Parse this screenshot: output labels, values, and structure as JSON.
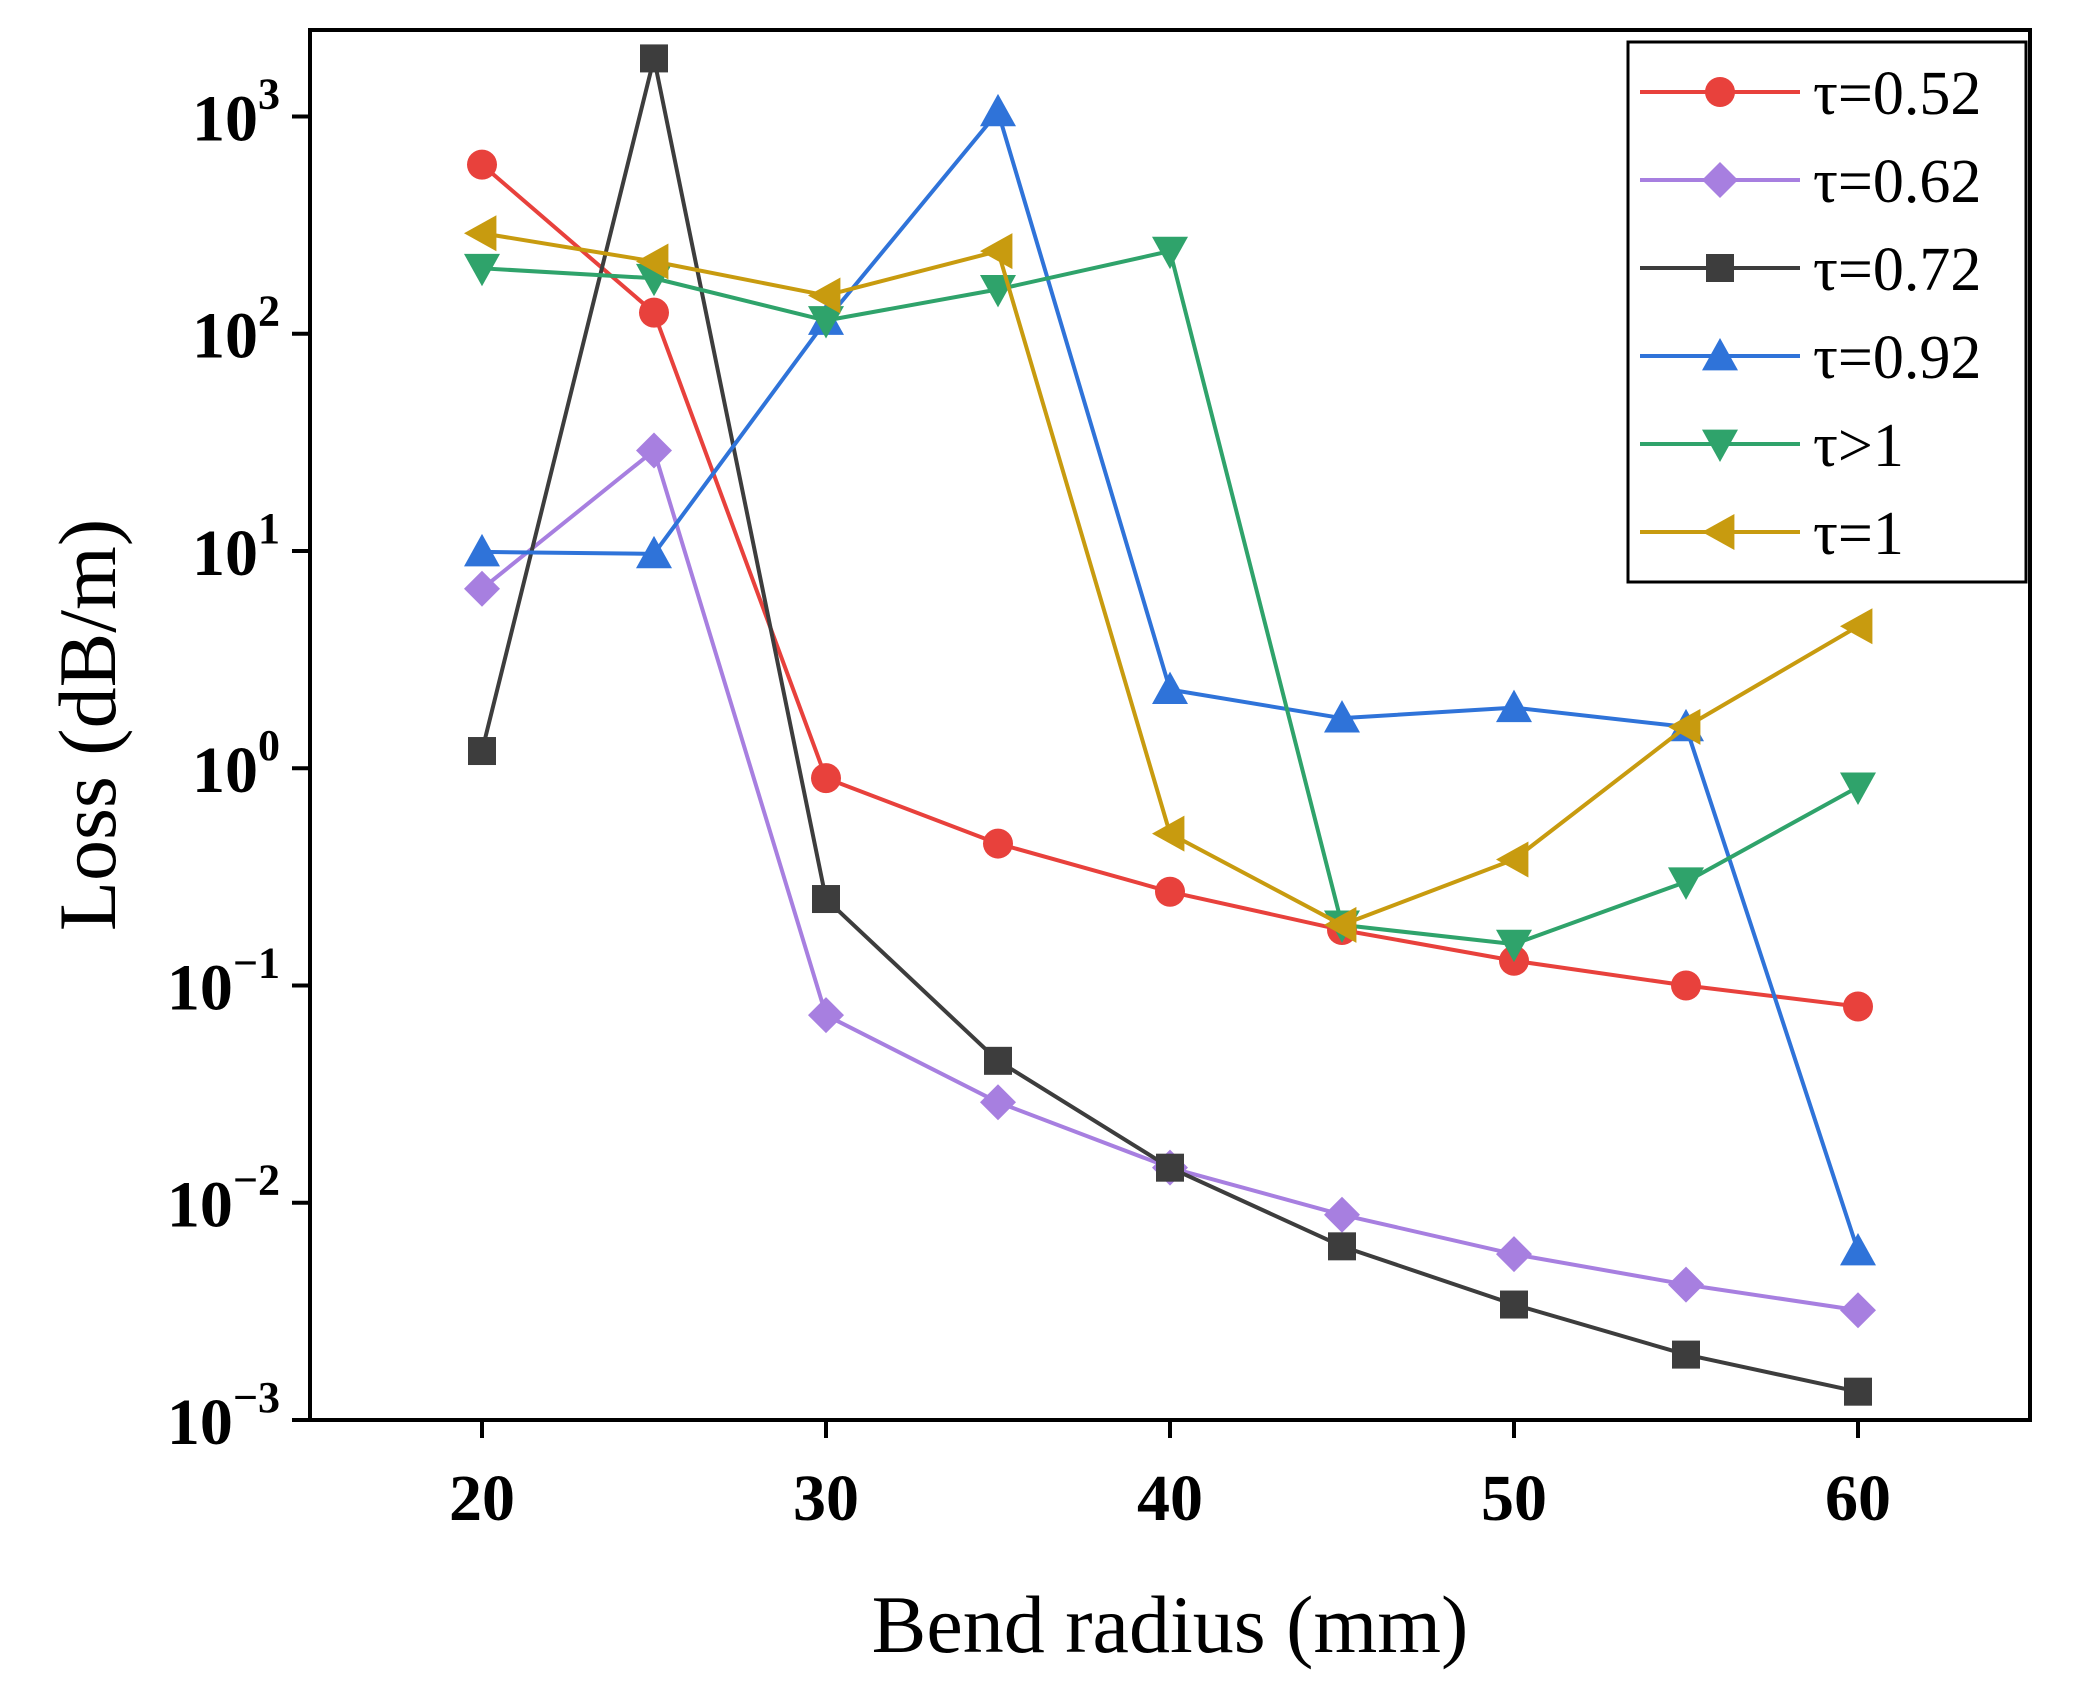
{
  "chart_data": {
    "type": "line",
    "title": "",
    "xlabel": "Bend radius (mm)",
    "ylabel": "Loss (dB/m)",
    "xlim": [
      15,
      65
    ],
    "ylim": [
      0.001,
      2500
    ],
    "yscale": "log",
    "x_ticks": [
      20,
      30,
      40,
      50,
      60
    ],
    "x_tick_labels": [
      "20",
      "30",
      "40",
      "50",
      "60"
    ],
    "y_ticks": [
      {
        "value": 0.001,
        "base": "10",
        "exp": "−3"
      },
      {
        "value": 0.01,
        "base": "10",
        "exp": "−2"
      },
      {
        "value": 0.1,
        "base": "10",
        "exp": "−1"
      },
      {
        "value": 1,
        "base": "10",
        "exp": "0"
      },
      {
        "value": 10,
        "base": "10",
        "exp": "1"
      },
      {
        "value": 100,
        "base": "10",
        "exp": "2"
      },
      {
        "value": 1000,
        "base": "10",
        "exp": "3"
      }
    ],
    "grid": false,
    "legend_position": "top-right",
    "x": [
      20,
      25,
      30,
      35,
      40,
      45,
      50,
      55,
      60
    ],
    "series": [
      {
        "name": "τ=0.52",
        "color": "#e8413c",
        "marker": "circle",
        "values": [
          600,
          125,
          0.9,
          0.45,
          0.27,
          0.18,
          0.13,
          0.1,
          0.08
        ]
      },
      {
        "name": "τ=0.62",
        "color": "#a77fe0",
        "marker": "diamond",
        "values": [
          6.7,
          29,
          0.073,
          0.029,
          0.0145,
          0.0088,
          0.0058,
          0.0042,
          0.0032
        ]
      },
      {
        "name": "τ=0.72",
        "color": "#3d3d3d",
        "marker": "square",
        "values": [
          1.2,
          1850,
          0.25,
          0.045,
          0.0145,
          0.0063,
          0.0034,
          0.002,
          0.00135
        ]
      },
      {
        "name": "τ=0.92",
        "color": "#2f73d9",
        "marker": "triangle-up",
        "values": [
          9.9,
          9.7,
          115,
          1050,
          2.3,
          1.7,
          1.9,
          1.55,
          0.006
        ]
      },
      {
        "name": "τ>1",
        "color": "#2fa36b",
        "marker": "triangle-down",
        "values": [
          200,
          180,
          115,
          160,
          240,
          0.19,
          0.155,
          0.3,
          0.82
        ]
      },
      {
        "name": "τ=1",
        "color": "#c89b0f",
        "marker": "triangle-left",
        "values": [
          290,
          215,
          150,
          240,
          0.5,
          0.19,
          0.38,
          1.55,
          4.5
        ]
      }
    ]
  }
}
